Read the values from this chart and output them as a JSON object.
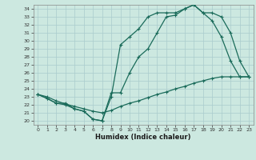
{
  "xlabel": "Humidex (Indice chaleur)",
  "bg_color": "#cce8e0",
  "grid_color": "#aacccc",
  "line_color": "#1a6b5a",
  "xlim": [
    -0.5,
    23.5
  ],
  "ylim": [
    19.5,
    34.5
  ],
  "xticks": [
    0,
    1,
    2,
    3,
    4,
    5,
    6,
    7,
    8,
    9,
    10,
    11,
    12,
    13,
    14,
    15,
    16,
    17,
    18,
    19,
    20,
    21,
    22,
    23
  ],
  "yticks": [
    20,
    21,
    22,
    23,
    24,
    25,
    26,
    27,
    28,
    29,
    30,
    31,
    32,
    33,
    34
  ],
  "line1_x": [
    0,
    1,
    2,
    3,
    4,
    5,
    6,
    7,
    8,
    9,
    10,
    11,
    12,
    13,
    14,
    15,
    16,
    17,
    18,
    19,
    20,
    21,
    22,
    23
  ],
  "line1_y": [
    23.3,
    23.0,
    22.5,
    22.1,
    21.8,
    21.5,
    21.2,
    21.0,
    21.3,
    21.8,
    22.2,
    22.5,
    22.9,
    23.3,
    23.6,
    24.0,
    24.3,
    24.7,
    25.0,
    25.3,
    25.5,
    25.5,
    25.5,
    25.5
  ],
  "line2_x": [
    0,
    1,
    2,
    3,
    4,
    5,
    6,
    7,
    8,
    9,
    10,
    11,
    12,
    13,
    14,
    15,
    16,
    17,
    18,
    19,
    20,
    21,
    22,
    23
  ],
  "line2_y": [
    23.3,
    22.8,
    22.2,
    22.0,
    21.5,
    21.2,
    20.2,
    20.0,
    23.5,
    23.5,
    26.0,
    28.0,
    29.0,
    31.0,
    33.0,
    33.2,
    34.0,
    34.5,
    33.5,
    32.5,
    30.5,
    27.5,
    25.5,
    25.5
  ],
  "line3_x": [
    0,
    1,
    2,
    3,
    4,
    5,
    6,
    7,
    8,
    9,
    10,
    11,
    12,
    13,
    14,
    15,
    16,
    17,
    18,
    19,
    20,
    21,
    22,
    23
  ],
  "line3_y": [
    23.3,
    22.8,
    22.2,
    22.2,
    21.5,
    21.2,
    20.2,
    20.0,
    23.0,
    29.5,
    30.5,
    31.5,
    33.0,
    33.5,
    33.5,
    33.5,
    34.0,
    34.5,
    33.5,
    33.5,
    33.0,
    31.0,
    27.5,
    25.5
  ]
}
